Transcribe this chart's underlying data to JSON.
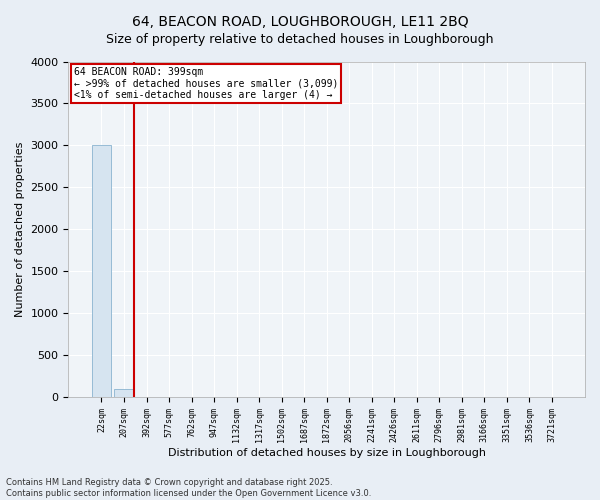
{
  "title": "64, BEACON ROAD, LOUGHBOROUGH, LE11 2BQ",
  "subtitle": "Size of property relative to detached houses in Loughborough",
  "xlabel": "Distribution of detached houses by size in Loughborough",
  "ylabel": "Number of detached properties",
  "footnote1": "Contains HM Land Registry data © Crown copyright and database right 2025.",
  "footnote2": "Contains public sector information licensed under the Open Government Licence v3.0.",
  "bar_labels": [
    "22sqm",
    "207sqm",
    "392sqm",
    "577sqm",
    "762sqm",
    "947sqm",
    "1132sqm",
    "1317sqm",
    "1502sqm",
    "1687sqm",
    "1872sqm",
    "2056sqm",
    "2241sqm",
    "2426sqm",
    "2611sqm",
    "2796sqm",
    "2981sqm",
    "3166sqm",
    "3351sqm",
    "3536sqm",
    "3721sqm"
  ],
  "bar_values": [
    3000,
    100,
    2,
    1,
    0,
    0,
    0,
    0,
    0,
    0,
    0,
    0,
    0,
    0,
    0,
    0,
    0,
    0,
    0,
    0,
    0
  ],
  "bar_color": "#d6e4f0",
  "bar_edgecolor": "#8ab4d0",
  "vline_x_index": 1,
  "vline_color": "#cc0000",
  "annotation_line1": "64 BEACON ROAD: 399sqm",
  "annotation_line2": "← >99% of detached houses are smaller (3,099)",
  "annotation_line3": "<1% of semi-detached houses are larger (4) →",
  "annotation_box_color": "#cc0000",
  "ylim": [
    0,
    4000
  ],
  "yticks": [
    0,
    500,
    1000,
    1500,
    2000,
    2500,
    3000,
    3500,
    4000
  ],
  "fig_bg_color": "#e8eef5",
  "plot_bg_color": "#f0f4f8",
  "grid_color": "#ffffff",
  "title_fontsize": 10,
  "subtitle_fontsize": 9,
  "ylabel_fontsize": 8,
  "xlabel_fontsize": 8,
  "ytick_fontsize": 8,
  "xtick_fontsize": 6,
  "footnote_fontsize": 6
}
